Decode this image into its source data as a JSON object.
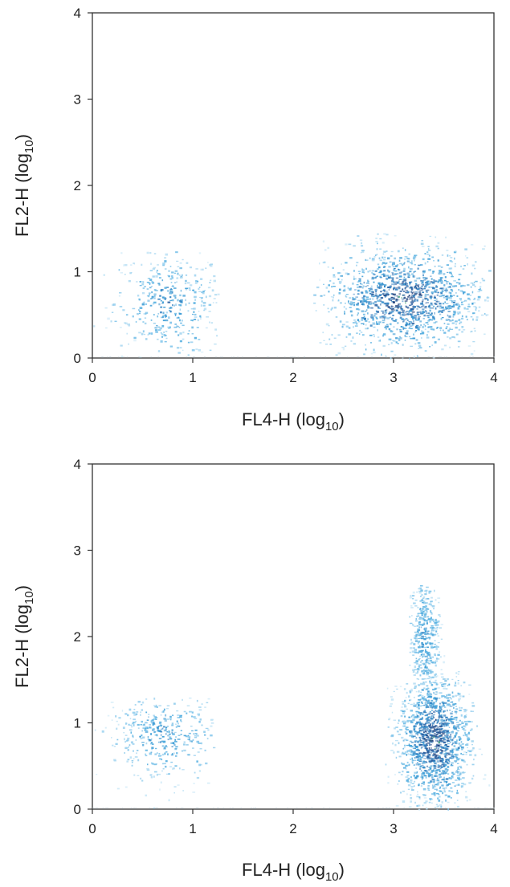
{
  "chart_data": [
    {
      "type": "scatter",
      "xlabel": "FL4-H (log",
      "xlabel_sub": "10",
      "xlabel_close": ")",
      "ylabel": "FL2-H (log",
      "ylabel_sub": "10",
      "ylabel_close": ")",
      "xlim": [
        0,
        4
      ],
      "ylim": [
        0,
        4
      ],
      "xticks": [
        "0",
        "1",
        "2",
        "3",
        "4"
      ],
      "yticks": [
        "0",
        "1",
        "2",
        "3",
        "4"
      ],
      "point_color": "#3a9bd5",
      "populations": [
        {
          "x_center": 0.75,
          "y_center": 0.65,
          "x_spread": 0.28,
          "y_spread": 0.3,
          "x_range": [
            0.0,
            1.25
          ],
          "y_range": [
            0.0,
            1.25
          ],
          "density": "low"
        },
        {
          "x_center": 3.1,
          "y_center": 0.7,
          "x_spread": 0.4,
          "y_spread": 0.3,
          "x_range": [
            2.2,
            3.95
          ],
          "y_range": [
            0.0,
            1.45
          ],
          "density": "high"
        }
      ]
    },
    {
      "type": "scatter",
      "xlabel": "FL4-H (log",
      "xlabel_sub": "10",
      "xlabel_close": ")",
      "ylabel": "FL2-H (log",
      "ylabel_sub": "10",
      "ylabel_close": ")",
      "xlim": [
        0,
        4
      ],
      "ylim": [
        0,
        4
      ],
      "xticks": [
        "0",
        "1",
        "2",
        "3",
        "4"
      ],
      "yticks": [
        "0",
        "1",
        "2",
        "3",
        "4"
      ],
      "point_color": "#3a9bd5",
      "populations": [
        {
          "x_center": 0.7,
          "y_center": 0.85,
          "x_spread": 0.28,
          "y_spread": 0.25,
          "x_range": [
            0.0,
            1.2
          ],
          "y_range": [
            0.0,
            1.3
          ],
          "density": "low"
        },
        {
          "x_center": 3.4,
          "y_center": 0.8,
          "x_spread": 0.18,
          "y_spread": 0.38,
          "x_range": [
            2.9,
            3.95
          ],
          "y_range": [
            0.0,
            1.6
          ],
          "density": "high"
        },
        {
          "x_center": 3.3,
          "y_center": 2.0,
          "x_spread": 0.08,
          "y_spread": 0.35,
          "x_range": [
            3.15,
            3.5
          ],
          "y_range": [
            1.3,
            2.6
          ],
          "density": "low"
        }
      ]
    }
  ]
}
